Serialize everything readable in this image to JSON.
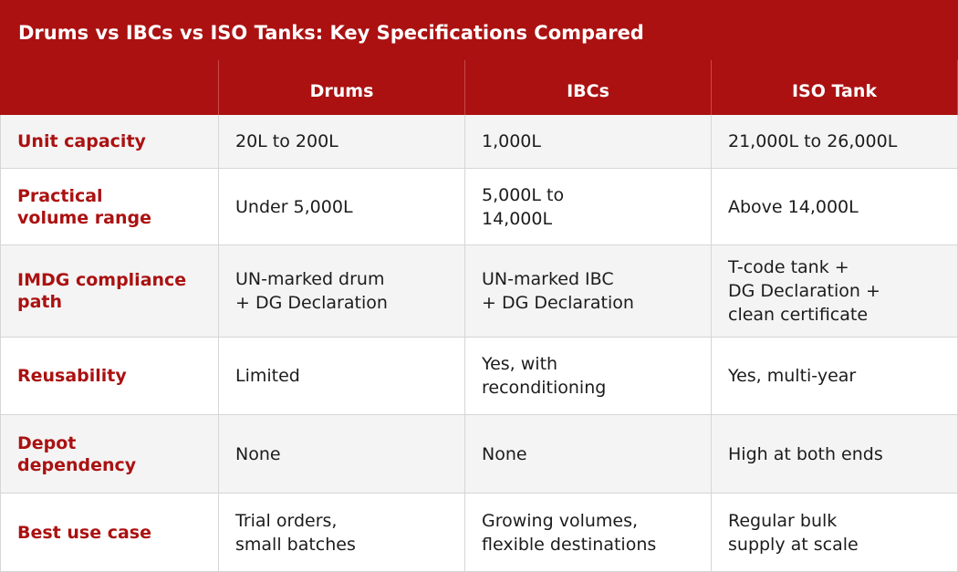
{
  "title": "Drums vs IBCs vs ISO Tanks: Key Specifications Compared",
  "colors": {
    "brand_red": "#ab1111",
    "zebra_light": "#f4f4f4",
    "white": "#ffffff",
    "border": "#d6d6d6"
  },
  "table": {
    "columns": [
      "",
      "Drums",
      "IBCs",
      "ISO Tank"
    ],
    "rows": [
      {
        "label": "Unit capacity",
        "drums": "20L to 200L",
        "ibcs": "1,000L",
        "iso": "21,000L to 26,000L"
      },
      {
        "label": "Practical\nvolume range",
        "drums": "Under 5,000L",
        "ibcs": "5,000L to\n14,000L",
        "iso": "Above 14,000L"
      },
      {
        "label": "IMDG compliance\npath",
        "drums": "UN-marked drum\n+ DG Declaration",
        "ibcs": "UN-marked IBC\n+ DG Declaration",
        "iso": "T-code tank +\nDG Declaration +\nclean certificate"
      },
      {
        "label": "Reusability",
        "drums": "Limited",
        "ibcs": "Yes, with\nreconditioning",
        "iso": "Yes, multi-year"
      },
      {
        "label": "Depot\ndependency",
        "drums": "None",
        "ibcs": "None",
        "iso": "High at both ends"
      },
      {
        "label": "Best use case",
        "drums": "Trial orders,\nsmall batches",
        "ibcs": "Growing volumes,\nflexible destinations",
        "iso": "Regular bulk\nsupply at scale"
      }
    ]
  }
}
